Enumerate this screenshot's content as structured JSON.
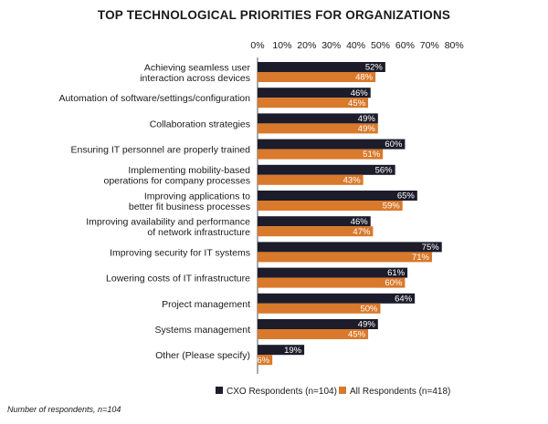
{
  "chart_data": {
    "type": "bar",
    "orientation": "horizontal",
    "title": "TOP TECHNOLOGICAL PRIORITIES FOR ORGANIZATIONS",
    "categories": [
      [
        "Achieving seamless user",
        "interaction across devices"
      ],
      [
        "Automation of software/settings/configuration"
      ],
      [
        "Collaboration strategies"
      ],
      [
        "Ensuring IT personnel are properly trained"
      ],
      [
        "Implementing mobility-based",
        "operations for company processes"
      ],
      [
        "Improving applications to",
        "better fit business processes"
      ],
      [
        "Improving availability and performance",
        "of network infrastructure"
      ],
      [
        "Improving security for IT systems"
      ],
      [
        "Lowering costs of IT infrastructure"
      ],
      [
        "Project management"
      ],
      [
        "Systems management"
      ],
      [
        "Other (Please specify)"
      ]
    ],
    "series": [
      {
        "name": "CXO Respondents (n=104)",
        "color": "#1c1c2b",
        "values": [
          52,
          46,
          49,
          60,
          56,
          65,
          46,
          75,
          61,
          64,
          49,
          19
        ]
      },
      {
        "name": "All Respondents (n=418)",
        "color": "#d9792b",
        "values": [
          48,
          45,
          49,
          51,
          43,
          59,
          47,
          71,
          60,
          50,
          45,
          6
        ]
      }
    ],
    "xlim": [
      0,
      80
    ],
    "xticks": [
      "0%",
      "10%",
      "20%",
      "30%",
      "40%",
      "50%",
      "60%",
      "70%",
      "80%"
    ],
    "value_suffix": "%",
    "legend": "bottom-right",
    "footnote": "Number of respondents, n=104"
  }
}
